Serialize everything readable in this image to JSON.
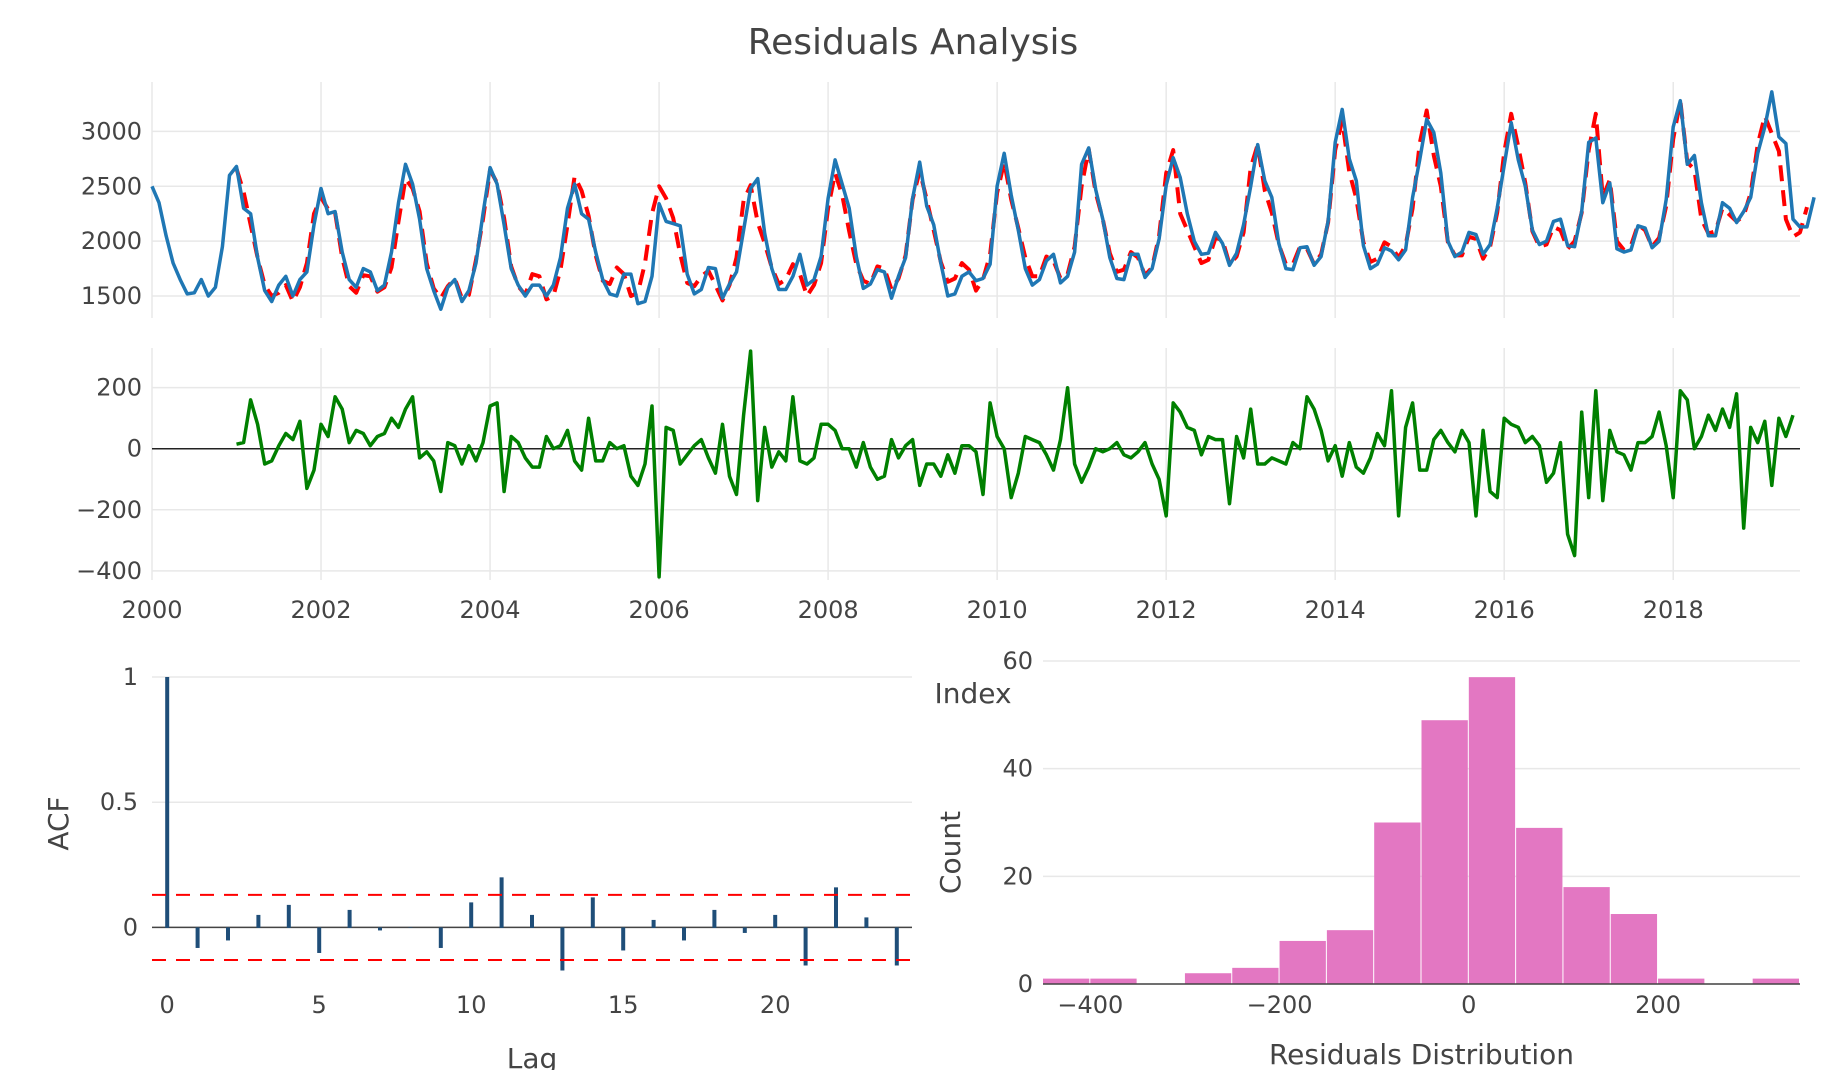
{
  "title": "Residuals Analysis",
  "colors": {
    "actual": "#1f77b4",
    "fitted": "#ff0000",
    "residuals": "#008000",
    "acf_bars": "#1f4e79",
    "confidence": "#ff0000",
    "histogram": "#e377c2"
  },
  "chart_data": [
    {
      "type": "line",
      "name": "actual-vs-fitted",
      "x_start": "2000-01",
      "x_step": "monthly",
      "xlim": [
        2000.0,
        2019.5
      ],
      "ylim": [
        1300,
        3450
      ],
      "yticks": [
        1500,
        2000,
        2500,
        3000
      ],
      "grid": true,
      "series": [
        {
          "role": "actual",
          "style": "solid",
          "values": [
            2500,
            2350,
            2050,
            1800,
            1650,
            1520,
            1530,
            1650,
            1500,
            1580,
            1950,
            2600,
            2680,
            2300,
            2250,
            1850,
            1550,
            1450,
            1600,
            1680,
            1500,
            1650,
            1720,
            2150,
            2480,
            2250,
            2270,
            1900,
            1650,
            1580,
            1750,
            1720,
            1550,
            1600,
            1900,
            2350,
            2700,
            2520,
            2200,
            1750,
            1550,
            1380,
            1580,
            1650,
            1450,
            1550,
            1800,
            2250,
            2670,
            2520,
            2150,
            1750,
            1600,
            1500,
            1600,
            1600,
            1500,
            1600,
            1850,
            2300,
            2520,
            2250,
            2200,
            1900,
            1650,
            1520,
            1500,
            1700,
            1700,
            1430,
            1450,
            1680,
            2340,
            2180,
            2160,
            2140,
            1700,
            1520,
            1560,
            1760,
            1750,
            1480,
            1610,
            1720,
            2100,
            2480,
            2570,
            2070,
            1750,
            1560,
            1560,
            1680,
            1880,
            1600,
            1650,
            1860,
            2390,
            2740,
            2520,
            2300,
            1860,
            1570,
            1610,
            1740,
            1720,
            1480,
            1680,
            1850,
            2390,
            2720,
            2320,
            2150,
            1800,
            1500,
            1520,
            1680,
            1720,
            1640,
            1660,
            1790,
            2500,
            2800,
            2420,
            2100,
            1750,
            1600,
            1650,
            1820,
            1880,
            1620,
            1680,
            1900,
            2700,
            2850,
            2470,
            2200,
            1850,
            1660,
            1650,
            1880,
            1880,
            1670,
            1750,
            2020,
            2510,
            2760,
            2580,
            2250,
            2000,
            1880,
            1890,
            2080,
            1980,
            1780,
            1890,
            2150,
            2500,
            2880,
            2550,
            2400,
            1980,
            1750,
            1740,
            1940,
            1950,
            1780,
            1860,
            2180,
            2900,
            3200,
            2750,
            2550,
            1960,
            1750,
            1790,
            1940,
            1910,
            1830,
            1920,
            2400,
            2740,
            3110,
            2990,
            2620,
            2000,
            1860,
            1900,
            2080,
            2060,
            1880,
            1970,
            2300,
            2690,
            3080,
            2740,
            2500,
            2100,
            1970,
            2000,
            2180,
            2200,
            1960,
            1950,
            2270,
            2900,
            2940,
            2350,
            2530,
            1930,
            1900,
            1920,
            2140,
            2120,
            1940,
            2000,
            2380,
            3040,
            3280,
            2700,
            2780,
            2350,
            2050,
            2050,
            2350,
            2300,
            2170,
            2270,
            2400,
            2800,
            3040,
            3360,
            2950,
            2890,
            2200,
            2130,
            2130,
            2400
          ]
        },
        {
          "role": "fitted",
          "style": "dashed",
          "start_index": 12,
          "values": [
            2660,
            2450,
            2150,
            1850,
            1600,
            1500,
            1530,
            1600,
            1450,
            1580,
            1800,
            2250,
            2400,
            2290,
            2260,
            1850,
            1590,
            1530,
            1690,
            1680,
            1540,
            1580,
            1760,
            2180,
            2570,
            2480,
            2270,
            1800,
            1570,
            1480,
            1590,
            1660,
            1480,
            1510,
            1830,
            2200,
            2650,
            2530,
            2210,
            1770,
            1590,
            1510,
            1700,
            1680,
            1470,
            1500,
            1740,
            2150,
            2590,
            2460,
            2230,
            1870,
            1640,
            1610,
            1760,
            1700,
            1500,
            1530,
            1800,
            2250,
            2500,
            2390,
            2210,
            1880,
            1620,
            1590,
            1680,
            1730,
            1600,
            1460,
            1600,
            1850,
            2370,
            2510,
            2170,
            1980,
            1760,
            1610,
            1650,
            1790,
            1700,
            1500,
            1600,
            1800,
            2300,
            2620,
            2420,
            2090,
            1790,
            1640,
            1610,
            1770,
            1750,
            1560,
            1660,
            1870,
            2380,
            2640,
            2380,
            2100,
            1810,
            1630,
            1660,
            1800,
            1740,
            1550,
            1650,
            1880,
            2440,
            2720,
            2380,
            2120,
            1850,
            1680,
            1680,
            1860,
            1820,
            1660,
            1700,
            1950,
            2500,
            2840,
            2440,
            2200,
            1890,
            1720,
            1740,
            1900,
            1850,
            1690,
            1760,
            2050,
            2620,
            2830,
            2250,
            2100,
            1950,
            1800,
            1830,
            2030,
            2010,
            1790,
            1860,
            2080,
            2670,
            2880,
            2460,
            2260,
            1970,
            1790,
            1790,
            1950,
            1930,
            1790,
            1880,
            2170,
            2830,
            3100,
            2630,
            2390,
            1990,
            1810,
            1840,
            1990,
            1950,
            1850,
            1960,
            2300,
            2890,
            3190,
            2780,
            2500,
            1990,
            1870,
            1870,
            2040,
            2020,
            1840,
            1950,
            2260,
            2810,
            3160,
            2860,
            2530,
            2090,
            1950,
            1970,
            2130,
            2100,
            1930,
            2000,
            2260,
            2830,
            3160,
            2400,
            2560,
            2000,
            1920,
            1960,
            2150,
            2100,
            1950,
            2030,
            2320,
            2930,
            3280,
            2720,
            2650,
            2200,
            2070,
            2090,
            2300,
            2240,
            2180,
            2230,
            2440,
            2880,
            3140,
            2980,
            2820,
            2200,
            2040,
            2080,
            2310
          ]
        }
      ]
    },
    {
      "type": "line",
      "name": "residuals",
      "x_start": "2001-01",
      "x_step": "monthly",
      "xlim": [
        2000.0,
        2019.5
      ],
      "ylim": [
        -430,
        330
      ],
      "yticks": [
        -400,
        -200,
        0,
        200
      ],
      "xticks": [
        "2000",
        "2002",
        "2004",
        "2006",
        "2008",
        "2010",
        "2012",
        "2014",
        "2016",
        "2018"
      ],
      "grid": true,
      "zero_line": true,
      "values": [
        15,
        20,
        160,
        80,
        -50,
        -40,
        10,
        50,
        30,
        90,
        -130,
        -70,
        80,
        40,
        170,
        130,
        20,
        60,
        50,
        10,
        40,
        50,
        100,
        70,
        130,
        170,
        -30,
        -10,
        -40,
        -140,
        20,
        10,
        -50,
        10,
        -40,
        20,
        140,
        150,
        -140,
        40,
        20,
        -30,
        -60,
        -60,
        40,
        0,
        10,
        60,
        -40,
        -70,
        100,
        -40,
        -40,
        20,
        0,
        10,
        -90,
        -120,
        -50,
        140,
        -420,
        70,
        60,
        -50,
        -20,
        10,
        30,
        -30,
        -80,
        80,
        -90,
        -150,
        110,
        320,
        -170,
        70,
        -60,
        -10,
        -40,
        170,
        -40,
        -50,
        -30,
        80,
        80,
        60,
        0,
        0,
        -60,
        20,
        -60,
        -100,
        -90,
        30,
        -30,
        10,
        30,
        -120,
        -50,
        -50,
        -90,
        -20,
        -80,
        10,
        10,
        -10,
        -150,
        150,
        40,
        0,
        -160,
        -80,
        40,
        30,
        20,
        -20,
        -70,
        30,
        200,
        -50,
        -110,
        -60,
        0,
        -10,
        0,
        20,
        -20,
        -30,
        -10,
        20,
        -50,
        -100,
        -220,
        150,
        120,
        70,
        60,
        -20,
        40,
        30,
        30,
        -180,
        40,
        -30,
        130,
        -50,
        -50,
        -30,
        -40,
        -50,
        20,
        0,
        170,
        130,
        60,
        -40,
        10,
        -90,
        20,
        -60,
        -80,
        -30,
        50,
        10,
        190,
        -220,
        70,
        150,
        -70,
        -70,
        30,
        60,
        20,
        -10,
        60,
        20,
        -220,
        60,
        -140,
        -160,
        100,
        80,
        70,
        20,
        40,
        10,
        -110,
        -80,
        20,
        -280,
        -350,
        120,
        -160,
        190,
        -170,
        60,
        -10,
        -20,
        -70,
        20,
        20,
        40,
        120,
        10,
        -160,
        190,
        160,
        0,
        40,
        110,
        60,
        130,
        70,
        180,
        -260,
        70,
        20,
        90,
        -120,
        100,
        40,
        110
      ]
    },
    {
      "type": "bar",
      "name": "acf",
      "xlabel": "Lag",
      "ylabel": "ACF",
      "xlim": [
        -0.5,
        24.5
      ],
      "ylim": [
        -0.17,
        1.0
      ],
      "xticks": [
        0,
        5,
        10,
        15,
        20
      ],
      "yticks": [
        "0",
        "0.5",
        "1"
      ],
      "lags": [
        0,
        1,
        2,
        3,
        4,
        5,
        6,
        7,
        8,
        9,
        10,
        11,
        12,
        13,
        14,
        15,
        16,
        17,
        18,
        19,
        20,
        21,
        22,
        23,
        24
      ],
      "values": [
        1.0,
        -0.08,
        -0.05,
        0.05,
        0.09,
        -0.1,
        0.07,
        -0.01,
        0.0,
        -0.08,
        0.1,
        0.2,
        0.05,
        -0.17,
        0.12,
        -0.09,
        0.03,
        -0.05,
        0.07,
        -0.02,
        0.05,
        -0.15,
        0.16,
        0.04,
        -0.15
      ],
      "confidence_band": [
        -0.13,
        0.13
      ]
    },
    {
      "type": "bar",
      "name": "residuals-histogram",
      "xlabel": "Residuals Distribution",
      "ylabel": "Count",
      "xlim": [
        -450,
        350
      ],
      "ylim": [
        0,
        60
      ],
      "xticks": [
        "−400",
        "−200",
        "0",
        "200"
      ],
      "yticks": [
        "0",
        "20",
        "40",
        "60"
      ],
      "bin_width": 50,
      "bin_starts": [
        -450,
        -400,
        -350,
        -300,
        -250,
        -200,
        -150,
        -100,
        -50,
        0,
        50,
        100,
        150,
        200,
        250,
        300
      ],
      "counts": [
        1,
        1,
        0,
        2,
        3,
        8,
        10,
        30,
        49,
        57,
        29,
        18,
        13,
        1,
        0,
        1
      ]
    }
  ],
  "bottom_left_corner_label": "Index"
}
